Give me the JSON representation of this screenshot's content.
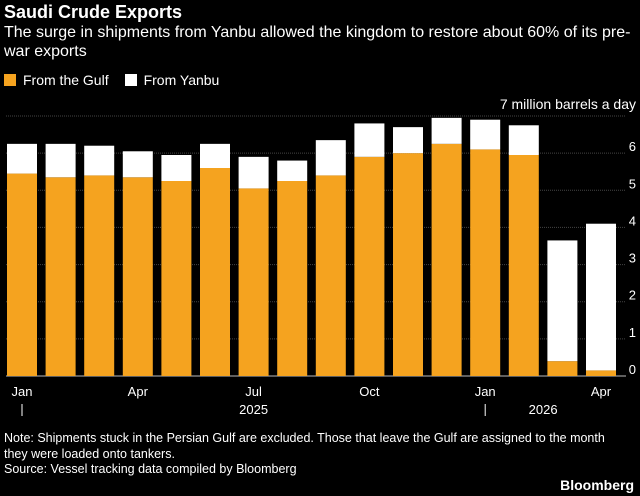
{
  "header": {
    "title": "Saudi Crude Exports",
    "subtitle": "The surge in shipments from Yanbu allowed the kingdom to restore about 60% of its pre-war exports"
  },
  "legend": [
    {
      "label": "From the Gulf",
      "color": "#f5a31f"
    },
    {
      "label": "From Yanbu",
      "color": "#ffffff"
    }
  ],
  "unit_label": "7 million barrels a day",
  "chart_data": {
    "type": "bar",
    "stacked": true,
    "categories": [
      "Jan 2025",
      "Feb 2025",
      "Mar 2025",
      "Apr 2025",
      "May 2025",
      "Jun 2025",
      "Jul 2025",
      "Aug 2025",
      "Sep 2025",
      "Oct 2025",
      "Nov 2025",
      "Dec 2025",
      "Jan 2026",
      "Feb 2026",
      "Mar 2026",
      "Apr 2026"
    ],
    "series": [
      {
        "name": "From the Gulf",
        "color": "#f5a31f",
        "values": [
          5.45,
          5.35,
          5.4,
          5.35,
          5.25,
          5.6,
          5.05,
          5.25,
          5.4,
          5.9,
          6.0,
          6.25,
          6.1,
          5.95,
          0.4,
          0.15
        ]
      },
      {
        "name": "From Yanbu",
        "color": "#ffffff",
        "values": [
          0.8,
          0.9,
          0.8,
          0.7,
          0.7,
          0.65,
          0.85,
          0.55,
          0.95,
          0.9,
          0.7,
          0.7,
          0.8,
          0.8,
          3.25,
          3.95
        ]
      }
    ],
    "ylim": [
      0,
      7
    ],
    "yticks": [
      0,
      1,
      2,
      3,
      4,
      5,
      6
    ],
    "ytick_labels": [
      "0",
      "1",
      "2",
      "3",
      "4",
      "5",
      "6"
    ],
    "xtick_labels": [
      {
        "index": 0,
        "label": "Jan"
      },
      {
        "index": 3,
        "label": "Apr"
      },
      {
        "index": 6,
        "label": "Jul"
      },
      {
        "index": 9,
        "label": "Oct"
      },
      {
        "index": 12,
        "label": "Jan"
      },
      {
        "index": 15,
        "label": "Apr"
      }
    ],
    "year_labels": [
      {
        "index": 6,
        "label": "2025"
      },
      {
        "index": 13.5,
        "label": "2026"
      }
    ],
    "year_dividers": [
      0,
      12
    ],
    "grid": true,
    "legend_position": "top-left"
  },
  "footer": {
    "note": "Note: Shipments stuck in the Persian Gulf are excluded. Those that leave the Gulf are assigned to the month they were loaded onto tankers.",
    "source": "Source: Vessel tracking data compiled by Bloomberg",
    "brand": "Bloomberg"
  }
}
